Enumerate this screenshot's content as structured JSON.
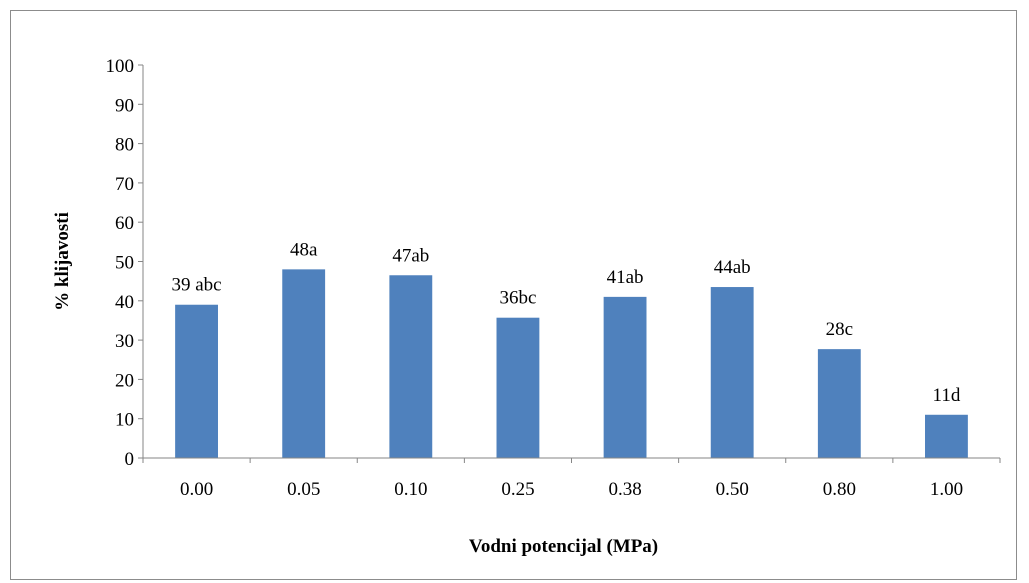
{
  "chart_data": {
    "type": "bar",
    "categories": [
      "0.00",
      "0.05",
      "0.10",
      "0.25",
      "0.38",
      "0.50",
      "0.80",
      "1.00"
    ],
    "values": [
      39,
      48,
      46.5,
      35.7,
      41,
      43.5,
      27.7,
      11
    ],
    "data_labels": [
      "39 abc",
      "48a",
      "47ab",
      "36bc",
      "41ab",
      "44ab",
      "28c",
      "11d"
    ],
    "xlabel": "Vodni potencijal (MPa)",
    "ylabel": "%  klijavosti",
    "ylim": [
      0,
      100
    ],
    "yticks": [
      "0",
      "10",
      "20",
      "30",
      "40",
      "50",
      "60",
      "70",
      "80",
      "90",
      "100"
    ],
    "bar_color": "#4f81bd",
    "grid": false,
    "legend": "none"
  }
}
